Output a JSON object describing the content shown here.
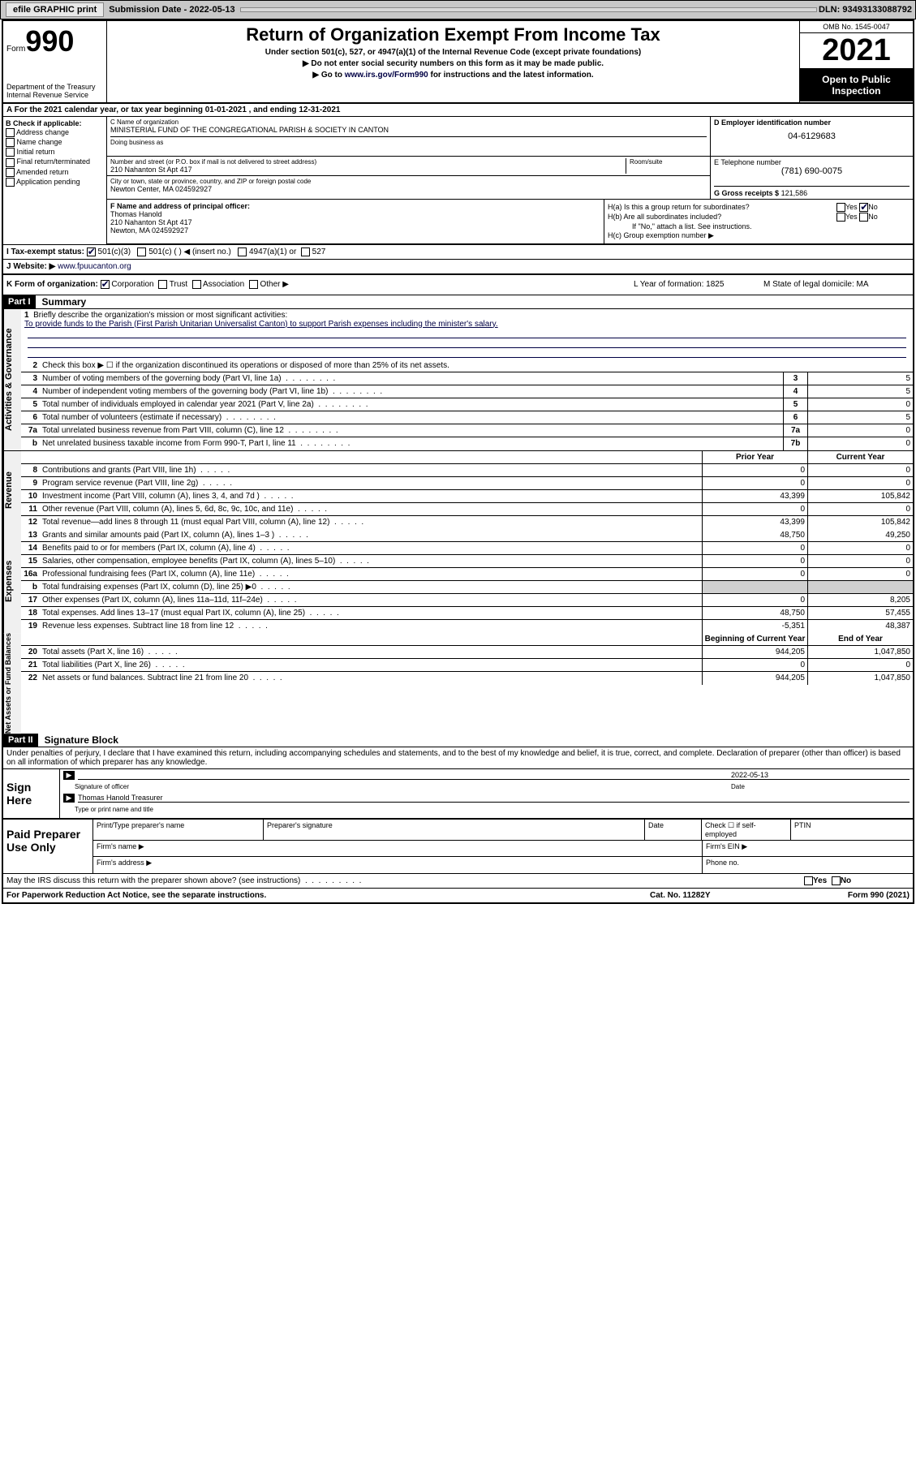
{
  "topbar": {
    "efile": "efile GRAPHIC print",
    "subdate_lbl": "Submission Date",
    "subdate": "2022-05-13",
    "dln": "DLN: 93493133088792"
  },
  "header": {
    "form_word": "Form",
    "form_no": "990",
    "dept": "Department of the Treasury\nInternal Revenue Service",
    "title": "Return of Organization Exempt From Income Tax",
    "sub1": "Under section 501(c), 527, or 4947(a)(1) of the Internal Revenue Code (except private foundations)",
    "sub2": "▶ Do not enter social security numbers on this form as it may be made public.",
    "sub3_pre": "▶ Go to ",
    "sub3_link": "www.irs.gov/Form990",
    "sub3_post": " for instructions and the latest information.",
    "omb": "OMB No. 1545-0047",
    "year": "2021",
    "open": "Open to Public Inspection"
  },
  "row_a": "A For the 2021 calendar year, or tax year beginning 01-01-2021    , and ending 12-31-2021",
  "col_b": {
    "hdr": "B Check if applicable:",
    "items": [
      "Address change",
      "Name change",
      "Initial return",
      "Final return/terminated",
      "Amended return",
      "Application pending"
    ]
  },
  "name": {
    "lbl": "C Name of organization",
    "val": "MINISTERIAL FUND OF THE CONGREGATIONAL PARISH & SOCIETY IN CANTON",
    "dba_lbl": "Doing business as",
    "ein_lbl": "D Employer identification number",
    "ein": "04-6129683"
  },
  "addr": {
    "street_lbl": "Number and street (or P.O. box if mail is not delivered to street address)",
    "street": "210 Nahanton St Apt 417",
    "room_lbl": "Room/suite",
    "city_lbl": "City or town, state or province, country, and ZIP or foreign postal code",
    "city": "Newton Center, MA  024592927",
    "tel_lbl": "E Telephone number",
    "tel": "(781) 690-0075",
    "gross_lbl": "G Gross receipts $",
    "gross": "121,586"
  },
  "officer": {
    "lbl": "F Name and address of principal officer:",
    "name": "Thomas Hanold",
    "addr1": "210 Nahanton St Apt 417",
    "addr2": "Newton, MA  024592927"
  },
  "h": {
    "ha": "H(a)  Is this a group return for subordinates?",
    "hb": "H(b)  Are all subordinates included?",
    "hb_note": "If \"No,\" attach a list. See instructions.",
    "hc": "H(c)  Group exemption number ▶",
    "yes": "Yes",
    "no": "No"
  },
  "row_i": {
    "lbl": "I    Tax-exempt status:",
    "o1": "501(c)(3)",
    "o2": "501(c) (   ) ◀ (insert no.)",
    "o3": "4947(a)(1) or",
    "o4": "527"
  },
  "row_j": {
    "lbl": "J    Website: ▶",
    "val": "www.fpuucanton.org"
  },
  "row_k": {
    "lbl": "K Form of organization:",
    "o1": "Corporation",
    "o2": "Trust",
    "o3": "Association",
    "o4": "Other ▶"
  },
  "row_l": "L Year of formation: 1825",
  "row_m": "M State of legal domicile: MA",
  "part1": {
    "hdr": "Part I",
    "title": "Summary"
  },
  "mission": {
    "num": "1",
    "lbl": "Briefly describe the organization's mission or most significant activities:",
    "txt": "To provide funds to the Parish (First Parish Unitarian Universalist Canton) to support Parish expenses including the minister's salary."
  },
  "lines_gov": [
    {
      "n": "2",
      "t": "Check this box ▶ ☐  if the organization discontinued its operations or disposed of more than 25% of its net assets.",
      "box": "",
      "v": ""
    },
    {
      "n": "3",
      "t": "Number of voting members of the governing body (Part VI, line 1a)",
      "box": "3",
      "v": "5"
    },
    {
      "n": "4",
      "t": "Number of independent voting members of the governing body (Part VI, line 1b)",
      "box": "4",
      "v": "5"
    },
    {
      "n": "5",
      "t": "Total number of individuals employed in calendar year 2021 (Part V, line 2a)",
      "box": "5",
      "v": "0"
    },
    {
      "n": "6",
      "t": "Total number of volunteers (estimate if necessary)",
      "box": "6",
      "v": "5"
    },
    {
      "n": "7a",
      "t": "Total unrelated business revenue from Part VIII, column (C), line 12",
      "box": "7a",
      "v": "0"
    },
    {
      "n": "b",
      "t": "Net unrelated business taxable income from Form 990-T, Part I, line 11",
      "box": "7b",
      "v": "0"
    }
  ],
  "col_hdrs": {
    "prior": "Prior Year",
    "current": "Current Year",
    "boy": "Beginning of Current Year",
    "eoy": "End of Year"
  },
  "lines_rev": [
    {
      "n": "8",
      "t": "Contributions and grants (Part VIII, line 1h)",
      "p": "0",
      "c": "0"
    },
    {
      "n": "9",
      "t": "Program service revenue (Part VIII, line 2g)",
      "p": "0",
      "c": "0"
    },
    {
      "n": "10",
      "t": "Investment income (Part VIII, column (A), lines 3, 4, and 7d )",
      "p": "43,399",
      "c": "105,842"
    },
    {
      "n": "11",
      "t": "Other revenue (Part VIII, column (A), lines 5, 6d, 8c, 9c, 10c, and 11e)",
      "p": "0",
      "c": "0"
    },
    {
      "n": "12",
      "t": "Total revenue—add lines 8 through 11 (must equal Part VIII, column (A), line 12)",
      "p": "43,399",
      "c": "105,842"
    }
  ],
  "lines_exp": [
    {
      "n": "13",
      "t": "Grants and similar amounts paid (Part IX, column (A), lines 1–3 )",
      "p": "48,750",
      "c": "49,250"
    },
    {
      "n": "14",
      "t": "Benefits paid to or for members (Part IX, column (A), line 4)",
      "p": "0",
      "c": "0"
    },
    {
      "n": "15",
      "t": "Salaries, other compensation, employee benefits (Part IX, column (A), lines 5–10)",
      "p": "0",
      "c": "0"
    },
    {
      "n": "16a",
      "t": "Professional fundraising fees (Part IX, column (A), line 11e)",
      "p": "0",
      "c": "0"
    },
    {
      "n": "b",
      "t": "Total fundraising expenses (Part IX, column (D), line 25) ▶0",
      "p": "",
      "c": "",
      "shade": true
    },
    {
      "n": "17",
      "t": "Other expenses (Part IX, column (A), lines 11a–11d, 11f–24e)",
      "p": "0",
      "c": "8,205"
    },
    {
      "n": "18",
      "t": "Total expenses. Add lines 13–17 (must equal Part IX, column (A), line 25)",
      "p": "48,750",
      "c": "57,455"
    },
    {
      "n": "19",
      "t": "Revenue less expenses. Subtract line 18 from line 12",
      "p": "-5,351",
      "c": "48,387"
    }
  ],
  "lines_net": [
    {
      "n": "20",
      "t": "Total assets (Part X, line 16)",
      "p": "944,205",
      "c": "1,047,850"
    },
    {
      "n": "21",
      "t": "Total liabilities (Part X, line 26)",
      "p": "0",
      "c": "0"
    },
    {
      "n": "22",
      "t": "Net assets or fund balances. Subtract line 21 from line 20",
      "p": "944,205",
      "c": "1,047,850"
    }
  ],
  "vtabs": {
    "gov": "Activities & Governance",
    "rev": "Revenue",
    "exp": "Expenses",
    "net": "Net Assets or Fund Balances"
  },
  "part2": {
    "hdr": "Part II",
    "title": "Signature Block"
  },
  "decl": "Under penalties of perjury, I declare that I have examined this return, including accompanying schedules and statements, and to the best of my knowledge and belief, it is true, correct, and complete. Declaration of preparer (other than officer) is based on all information of which preparer has any knowledge.",
  "sign": {
    "lbl": "Sign Here",
    "sig_of": "Signature of officer",
    "date_lbl": "Date",
    "date": "2022-05-13",
    "name": "Thomas Hanold  Treasurer",
    "name_lbl": "Type or print name and title"
  },
  "paid": {
    "lbl": "Paid Preparer Use Only",
    "c1": "Print/Type preparer's name",
    "c2": "Preparer's signature",
    "c3": "Date",
    "c4": "Check ☐ if self-employed",
    "c5": "PTIN",
    "firm_name": "Firm's name    ▶",
    "firm_ein": "Firm's EIN ▶",
    "firm_addr": "Firm's address ▶",
    "phone": "Phone no."
  },
  "irs_q": "May the IRS discuss this return with the preparer shown above? (see instructions)",
  "ftr": {
    "a": "For Paperwork Reduction Act Notice, see the separate instructions.",
    "b": "Cat. No. 11282Y",
    "c": "Form 990 (2021)"
  }
}
